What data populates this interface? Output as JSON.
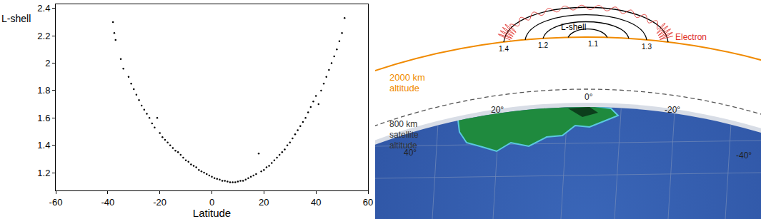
{
  "chart_data": {
    "type": "scatter",
    "x_label": "Latitude",
    "y_label": "L-shell",
    "color": "#000000",
    "marker": "dot",
    "grid": false,
    "x": [
      -38,
      -37.5,
      -37,
      -35,
      -34,
      -32,
      -31,
      -30,
      -29,
      -28,
      -27,
      -26,
      -25,
      -24,
      -23,
      -22,
      -21,
      -20,
      -19,
      -18,
      -17,
      -16,
      -15,
      -14,
      -13,
      -12,
      -11,
      -10,
      -9,
      -8,
      -7,
      -6,
      -5,
      -4,
      -3,
      -2,
      -1,
      0,
      1,
      2,
      3,
      4,
      5,
      6,
      7,
      8,
      9,
      10,
      11,
      12,
      13,
      14,
      15,
      16,
      17,
      18,
      19,
      20,
      21,
      22,
      23,
      24,
      25,
      26,
      27,
      28,
      29,
      30,
      31,
      32,
      33,
      34,
      35,
      36,
      37,
      38,
      39,
      40,
      41,
      42,
      43,
      44,
      45,
      46,
      47,
      48,
      49,
      50,
      51
    ],
    "values": [
      2.3,
      2.22,
      2.17,
      2.03,
      1.96,
      1.9,
      1.85,
      1.81,
      1.77,
      1.73,
      1.69,
      1.66,
      1.63,
      1.6,
      1.56,
      1.53,
      1.6,
      1.49,
      1.46,
      1.44,
      1.42,
      1.4,
      1.38,
      1.36,
      1.35,
      1.33,
      1.31,
      1.29,
      1.28,
      1.26,
      1.25,
      1.24,
      1.22,
      1.21,
      1.2,
      1.19,
      1.18,
      1.17,
      1.16,
      1.155,
      1.15,
      1.14,
      1.14,
      1.135,
      1.13,
      1.13,
      1.13,
      1.135,
      1.14,
      1.14,
      1.15,
      1.16,
      1.17,
      1.18,
      1.19,
      1.34,
      1.21,
      1.22,
      1.24,
      1.25,
      1.27,
      1.29,
      1.31,
      1.33,
      1.35,
      1.37,
      1.4,
      1.42,
      1.45,
      1.48,
      1.51,
      1.54,
      1.57,
      1.6,
      1.64,
      1.68,
      1.72,
      1.76,
      1.7,
      1.8,
      1.85,
      1.9,
      1.95,
      2.0,
      2.05,
      2.1,
      2.16,
      2.22,
      2.33
    ],
    "xlim": [
      -60,
      60
    ],
    "xticks": [
      -60,
      -40,
      -20,
      0,
      20,
      40,
      60
    ],
    "ylim": [
      1.07,
      2.43
    ],
    "yticks": [
      1.2,
      1.4,
      1.6,
      1.8,
      2,
      2.2,
      2.4
    ]
  },
  "diagram": {
    "field_lines": {
      "title": "L-shell",
      "labels": [
        "1.4",
        "1.2",
        "1.1",
        "1.3"
      ]
    },
    "particle": "Electron",
    "orbit_2000": [
      "2000 km",
      "altitude"
    ],
    "orbit_800": [
      "800 km",
      "satellite",
      "altitude"
    ],
    "latitudes": [
      "40°",
      "20°",
      "0°",
      "-20°",
      "-40°"
    ]
  }
}
